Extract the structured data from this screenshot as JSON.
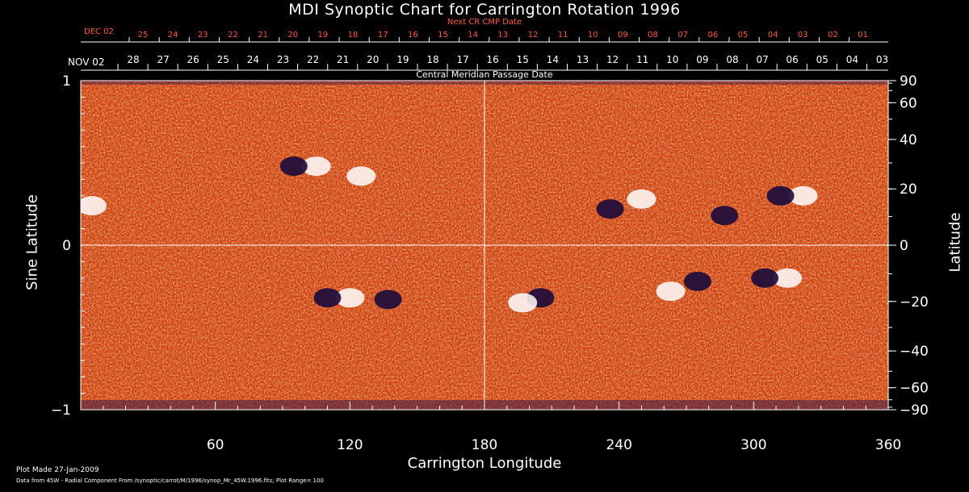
{
  "chart_data": {
    "type": "heatmap",
    "title": "MDI Synoptic Chart for Carrington Rotation 1996",
    "top_axis_primary": {
      "label": "Next CR CMP Date",
      "start_label": "DEC 02",
      "ticks": [
        "25",
        "24",
        "23",
        "22",
        "21",
        "20",
        "19",
        "18",
        "17",
        "16",
        "15",
        "14",
        "13",
        "12",
        "11",
        "10",
        "09",
        "08",
        "07",
        "06",
        "05",
        "04",
        "03",
        "02",
        "01"
      ]
    },
    "top_axis_secondary": {
      "label": "Central Meridian Passage Date",
      "start_label": "NOV 02",
      "ticks": [
        "28",
        "27",
        "26",
        "25",
        "24",
        "23",
        "22",
        "21",
        "20",
        "19",
        "18",
        "17",
        "16",
        "15",
        "14",
        "13",
        "12",
        "11",
        "10",
        "09",
        "08",
        "07",
        "06",
        "05",
        "04",
        "03"
      ]
    },
    "xlabel": "Carrington Longitude",
    "xlim": [
      0,
      360
    ],
    "xticks": [
      60,
      120,
      180,
      240,
      300,
      360
    ],
    "ylabel_left": "Sine Latitude",
    "ylim": [
      -1,
      1
    ],
    "yticks_left": [
      "1",
      "0",
      "−1"
    ],
    "ylabel_right": "Latitude",
    "yticks_right": [
      "90",
      "60",
      "40",
      "20",
      "0",
      "−20",
      "−40",
      "−60",
      "−90"
    ],
    "yticks_right_values": [
      90,
      60,
      40,
      20,
      0,
      -20,
      -40,
      -60,
      -90
    ],
    "crosshair": {
      "x": 180,
      "y": 0
    },
    "active_regions": [
      {
        "lon": 100,
        "sinlat": 0.48,
        "polarity": "mixed"
      },
      {
        "lon": 125,
        "sinlat": 0.42,
        "polarity": "positive"
      },
      {
        "lon": 5,
        "sinlat": 0.24,
        "polarity": "positive"
      },
      {
        "lon": 115,
        "sinlat": -0.32,
        "polarity": "mixed"
      },
      {
        "lon": 137,
        "sinlat": -0.33,
        "polarity": "negative"
      },
      {
        "lon": 205,
        "sinlat": -0.32,
        "polarity": "negative"
      },
      {
        "lon": 197,
        "sinlat": -0.35,
        "polarity": "positive"
      },
      {
        "lon": 236,
        "sinlat": 0.22,
        "polarity": "negative"
      },
      {
        "lon": 250,
        "sinlat": 0.28,
        "polarity": "positive"
      },
      {
        "lon": 275,
        "sinlat": -0.22,
        "polarity": "negative"
      },
      {
        "lon": 263,
        "sinlat": -0.28,
        "polarity": "positive"
      },
      {
        "lon": 317,
        "sinlat": 0.3,
        "polarity": "mixed"
      },
      {
        "lon": 310,
        "sinlat": -0.2,
        "polarity": "mixed"
      },
      {
        "lon": 287,
        "sinlat": 0.18,
        "polarity": "negative"
      }
    ],
    "color_range": 100,
    "colors": {
      "background": "#cc3d0c",
      "positive": "#ffffff",
      "negative": "#1a0a3a",
      "grid": "#ffffff",
      "accent_text": "#ff5a3c"
    }
  },
  "footer": {
    "plot_made": "Plot Made 27-Jan-2009",
    "source": "Data from 45W - Radial Component From /synoptic/carrot/M/1996/synop_Mr_45W.1996.fits; Plot Range= 100"
  }
}
